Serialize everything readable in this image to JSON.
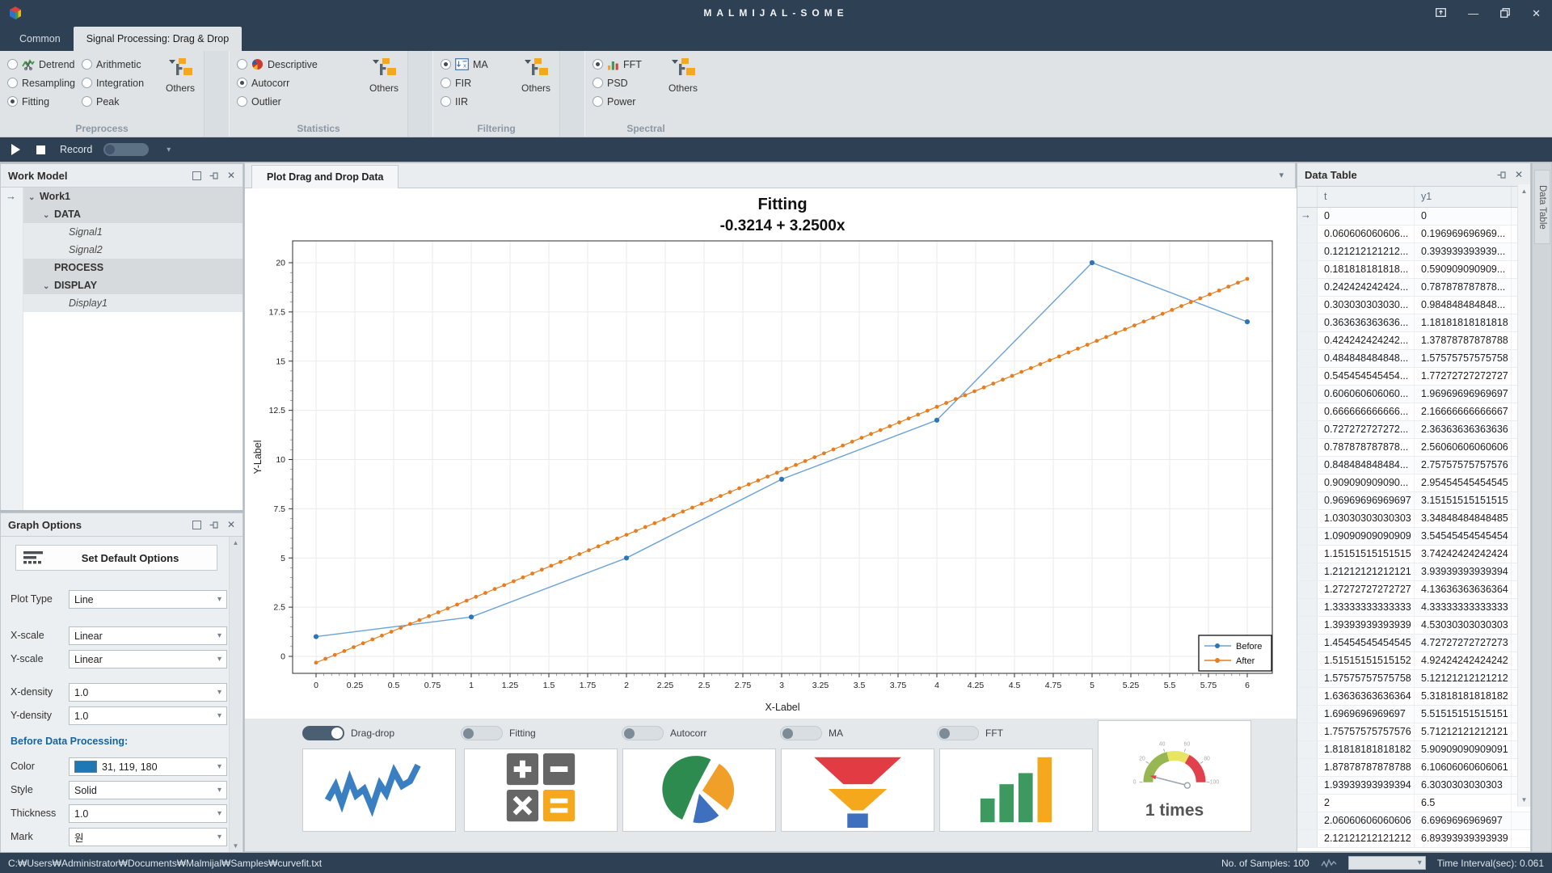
{
  "window": {
    "title": "MALMIJAL-SOME"
  },
  "tabs": [
    {
      "label": "Common",
      "active": false
    },
    {
      "label": "Signal Processing: Drag & Drop",
      "active": true
    }
  ],
  "ribbon": {
    "groups": [
      {
        "label": "Preprocess",
        "others_label": "Others",
        "columns": [
          [
            {
              "label": "Detrend",
              "icon": "detrend"
            },
            {
              "label": "Resampling"
            },
            {
              "label": "Fitting",
              "selected": true
            }
          ],
          [
            {
              "label": "Arithmetic"
            },
            {
              "label": "Integration"
            },
            {
              "label": "Peak"
            }
          ]
        ]
      },
      {
        "label": "Statistics",
        "others_label": "Others",
        "columns": [
          [
            {
              "label": "Descriptive",
              "icon": "pie"
            },
            {
              "label": "Autocorr",
              "selected": true
            },
            {
              "label": "Outlier"
            }
          ]
        ]
      },
      {
        "label": "Filtering",
        "others_label": "Others",
        "columns": [
          [
            {
              "label": "MA",
              "icon": "ma",
              "selected": true
            },
            {
              "label": "FIR"
            },
            {
              "label": "IIR"
            }
          ]
        ]
      },
      {
        "label": "Spectral",
        "others_label": "Others",
        "columns": [
          [
            {
              "label": "FFT",
              "icon": "fft",
              "selected": true
            },
            {
              "label": "PSD"
            },
            {
              "label": "Power"
            }
          ]
        ]
      }
    ]
  },
  "record_bar": {
    "label": "Record"
  },
  "work_model": {
    "title": "Work Model",
    "rows": [
      {
        "label": "Work1",
        "level": 0,
        "bold": true,
        "expander": true,
        "pointer": true
      },
      {
        "label": "DATA",
        "level": 1,
        "bold": true,
        "expander": true
      },
      {
        "label": "Signal1",
        "level": 2,
        "italic": true
      },
      {
        "label": "Signal2",
        "level": 2,
        "italic": true
      },
      {
        "label": "PROCESS",
        "level": 1,
        "bold": true
      },
      {
        "label": "DISPLAY",
        "level": 1,
        "bold": true,
        "expander": true
      },
      {
        "label": "Display1",
        "level": 2,
        "italic": true
      }
    ]
  },
  "graph_options": {
    "title": "Graph Options",
    "button_label": "Set Default Options",
    "section_label": "Before Data Processing:",
    "fields": [
      {
        "label": "Plot Type",
        "value": "Line"
      },
      {
        "label": "X-scale",
        "value": "Linear"
      },
      {
        "label": "Y-scale",
        "value": "Linear"
      },
      {
        "label": "X-density",
        "value": "1.0"
      },
      {
        "label": "Y-density",
        "value": "1.0"
      },
      {
        "label": "Color",
        "value": "31, 119, 180",
        "swatch": "#1f77b4"
      },
      {
        "label": "Style",
        "value": "Solid"
      },
      {
        "label": "Thickness",
        "value": "1.0"
      },
      {
        "label": "Mark",
        "value": "원"
      }
    ]
  },
  "doc_tab": {
    "label": "Plot Drag and Drop Data"
  },
  "chart_data": {
    "type": "line",
    "title": "Fitting",
    "subtitle": "-0.3214 + 3.2500x",
    "xlabel": "X-Label",
    "ylabel": "Y-Label",
    "xlim": [
      0,
      6
    ],
    "ylim": [
      0,
      20
    ],
    "x_ticks": [
      "0",
      "0.25",
      "0.5",
      "0.75",
      "1",
      "1.25",
      "1.5",
      "1.75",
      "2",
      "2.25",
      "2.5",
      "2.75",
      "3",
      "3.25",
      "3.5",
      "3.75",
      "4",
      "4.25",
      "4.5",
      "4.75",
      "5",
      "5.25",
      "5.5",
      "5.75",
      "6"
    ],
    "y_ticks": [
      "0",
      "2.5",
      "5",
      "7.5",
      "10",
      "12.5",
      "15",
      "17.5",
      "20"
    ],
    "grid": true,
    "legend_position": "lower right",
    "series": [
      {
        "name": "Before",
        "type": "line",
        "marker": "circle",
        "color": "#6aa2d8",
        "marker_color": "#2e75b6",
        "x": [
          0,
          1,
          2,
          3,
          4,
          5,
          6
        ],
        "y": [
          1,
          2,
          5,
          9,
          12,
          20,
          17
        ]
      },
      {
        "name": "After",
        "type": "fit_line",
        "marker": "circle",
        "color": "#e87d1e",
        "intercept": -0.3214,
        "slope": 3.25,
        "x_start": 0,
        "x_end": 6,
        "n_points": 100
      }
    ]
  },
  "bottom_bar": {
    "toggles": [
      {
        "label": "Drag-drop",
        "on": true
      },
      {
        "label": "Fitting",
        "on": false
      },
      {
        "label": "Autocorr",
        "on": false
      },
      {
        "label": "MA",
        "on": false
      },
      {
        "label": "FFT",
        "on": false
      }
    ],
    "cards": [
      "signal",
      "calculator",
      "pie",
      "funnel",
      "bars"
    ],
    "gauge_label": "1 times"
  },
  "data_table": {
    "title": "Data Table",
    "side_tab": "Data Table",
    "columns": [
      "t",
      "y1"
    ],
    "rows": [
      [
        "0",
        "0"
      ],
      [
        "0.060606060606...",
        "0.196969696969..."
      ],
      [
        "0.121212121212...",
        "0.393939393939..."
      ],
      [
        "0.181818181818...",
        "0.590909090909..."
      ],
      [
        "0.242424242424...",
        "0.787878787878..."
      ],
      [
        "0.303030303030...",
        "0.984848484848..."
      ],
      [
        "0.363636363636...",
        "1.18181818181818"
      ],
      [
        "0.424242424242...",
        "1.37878787878788"
      ],
      [
        "0.484848484848...",
        "1.57575757575758"
      ],
      [
        "0.545454545454...",
        "1.77272727272727"
      ],
      [
        "0.606060606060...",
        "1.96969696969697"
      ],
      [
        "0.666666666666...",
        "2.16666666666667"
      ],
      [
        "0.727272727272...",
        "2.36363636363636"
      ],
      [
        "0.787878787878...",
        "2.56060606060606"
      ],
      [
        "0.848484848484...",
        "2.75757575757576"
      ],
      [
        "0.909090909090...",
        "2.95454545454545"
      ],
      [
        "0.96969696969697",
        "3.15151515151515"
      ],
      [
        "1.03030303030303",
        "3.34848484848485"
      ],
      [
        "1.09090909090909",
        "3.54545454545454"
      ],
      [
        "1.15151515151515",
        "3.74242424242424"
      ],
      [
        "1.21212121212121",
        "3.93939393939394"
      ],
      [
        "1.27272727272727",
        "4.13636363636364"
      ],
      [
        "1.33333333333333",
        "4.33333333333333"
      ],
      [
        "1.39393939393939",
        "4.53030303030303"
      ],
      [
        "1.45454545454545",
        "4.72727272727273"
      ],
      [
        "1.51515151515152",
        "4.92424242424242"
      ],
      [
        "1.57575757575758",
        "5.12121212121212"
      ],
      [
        "1.63636363636364",
        "5.31818181818182"
      ],
      [
        "1.6969696969697",
        "5.51515151515151"
      ],
      [
        "1.75757575757576",
        "5.71212121212121"
      ],
      [
        "1.81818181818182",
        "5.90909090909091"
      ],
      [
        "1.87878787878788",
        "6.10606060606061"
      ],
      [
        "1.93939393939394",
        "6.3030303030303"
      ],
      [
        "2",
        "6.5"
      ],
      [
        "2.06060606060606",
        "6.6969696969697"
      ],
      [
        "2.12121212121212",
        "6.89393939393939"
      ]
    ]
  },
  "status_bar": {
    "path": "C:₩Users₩Administrator₩Documents₩Malmijal₩Samples₩curvefit.txt",
    "samples_label": "No. of Samples: 100",
    "interval_label": "Time Interval(sec): 0.061"
  }
}
